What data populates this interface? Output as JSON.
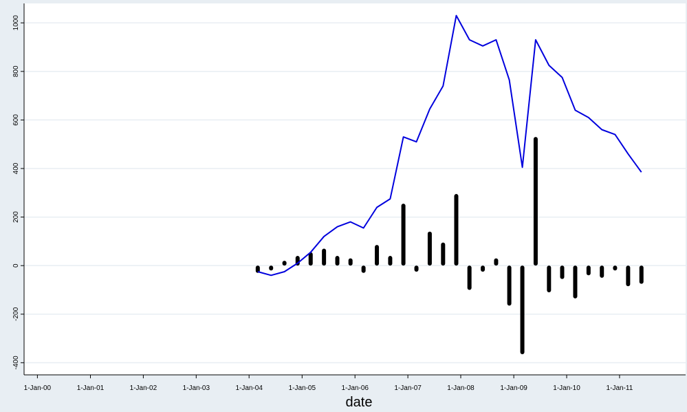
{
  "chart_data": {
    "type": "bar",
    "title": "",
    "xlabel": "date",
    "ylabel": "",
    "x_tick_labels": [
      "1-Jan-00",
      "1-Jan-01",
      "1-Jan-02",
      "1-Jan-03",
      "1-Jan-04",
      "1-Jan-05",
      "1-Jan-06",
      "1-Jan-07",
      "1-Jan-08",
      "1-Jan-09",
      "1-Jan-10",
      "1-Jan-11"
    ],
    "x_tick_dates": [
      "2000-01-01",
      "2001-01-01",
      "2002-01-01",
      "2003-01-01",
      "2004-01-01",
      "2005-01-01",
      "2006-01-01",
      "2007-01-01",
      "2008-01-01",
      "2009-01-01",
      "2010-01-01",
      "2011-01-01"
    ],
    "y_ticks": [
      -400,
      -200,
      0,
      200,
      400,
      600,
      800,
      1000
    ],
    "y_tick_labels": [
      "-400",
      "-200",
      "0",
      "200",
      "400",
      "600",
      "800",
      "1000"
    ],
    "xlim": [
      "1999-10-01",
      "2012-04-01"
    ],
    "ylim": [
      -450,
      1080
    ],
    "grid": true,
    "colors": {
      "line": "#0000dd",
      "bars": "#000000",
      "background": "#e8eef3",
      "plot_background": "#ffffff",
      "grid": "#e8eef3"
    },
    "series": [
      {
        "type": "line",
        "x": [
          "2004-03-01",
          "2004-06-01",
          "2004-09-01",
          "2004-12-01",
          "2005-03-01",
          "2005-06-01",
          "2005-09-01",
          "2005-12-01",
          "2006-03-01",
          "2006-06-01",
          "2006-09-01",
          "2006-12-01",
          "2007-03-01",
          "2007-06-01",
          "2007-09-01",
          "2007-12-01",
          "2008-03-01",
          "2008-06-01",
          "2008-09-01",
          "2008-12-01",
          "2009-03-01",
          "2009-06-01",
          "2009-09-01",
          "2009-12-01",
          "2010-03-01",
          "2010-06-01",
          "2010-09-01",
          "2010-12-01",
          "2011-03-01",
          "2011-06-01"
        ],
        "values": [
          -25,
          -40,
          -25,
          10,
          55,
          120,
          160,
          180,
          155,
          240,
          275,
          530,
          510,
          645,
          740,
          1030,
          930,
          905,
          930,
          765,
          405,
          930,
          825,
          775,
          640,
          610,
          560,
          540,
          460,
          385
        ]
      },
      {
        "type": "bar",
        "x": [
          "2004-03-01",
          "2004-06-01",
          "2004-09-01",
          "2004-12-01",
          "2005-03-01",
          "2005-06-01",
          "2005-09-01",
          "2005-12-01",
          "2006-03-01",
          "2006-06-01",
          "2006-09-01",
          "2006-12-01",
          "2007-03-01",
          "2007-06-01",
          "2007-09-01",
          "2007-12-01",
          "2008-03-01",
          "2008-06-01",
          "2008-09-01",
          "2008-12-01",
          "2009-03-01",
          "2009-06-01",
          "2009-09-01",
          "2009-12-01",
          "2010-03-01",
          "2010-06-01",
          "2010-09-01",
          "2010-12-01",
          "2011-03-01",
          "2011-06-01"
        ],
        "values": [
          -30,
          -20,
          20,
          40,
          55,
          70,
          40,
          30,
          -30,
          85,
          40,
          255,
          -25,
          140,
          95,
          295,
          -100,
          -25,
          30,
          -165,
          -365,
          530,
          -110,
          -55,
          -135,
          -40,
          -50,
          -20,
          -85,
          -75
        ]
      }
    ]
  }
}
